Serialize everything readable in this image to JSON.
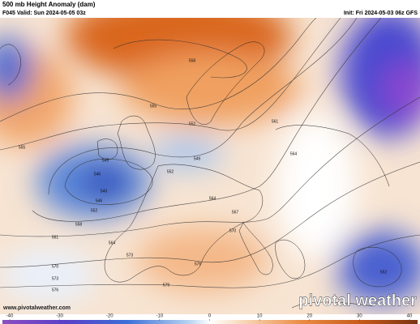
{
  "header": {
    "title": "500 mb Height Anomaly (dam)",
    "valid": "F045 Valid: Sun 2024-05-05 03z",
    "init": "Init: Fri 2024-05-03 06z GFS"
  },
  "contour_labels": [
    "558",
    "555",
    "552",
    "555",
    "549",
    "549",
    "552",
    "546",
    "543",
    "546",
    "552",
    "558",
    "561",
    "564",
    "567",
    "570",
    "564",
    "573",
    "576",
    "570",
    "573",
    "576",
    "579",
    "561",
    "564",
    "552"
  ],
  "colorbar": {
    "ticks": [
      -40,
      -30,
      -20,
      -10,
      0,
      10,
      20,
      30,
      40
    ]
  },
  "footer": {
    "url": "www.pivotalweather.com",
    "brand": "pivotal weather"
  }
}
